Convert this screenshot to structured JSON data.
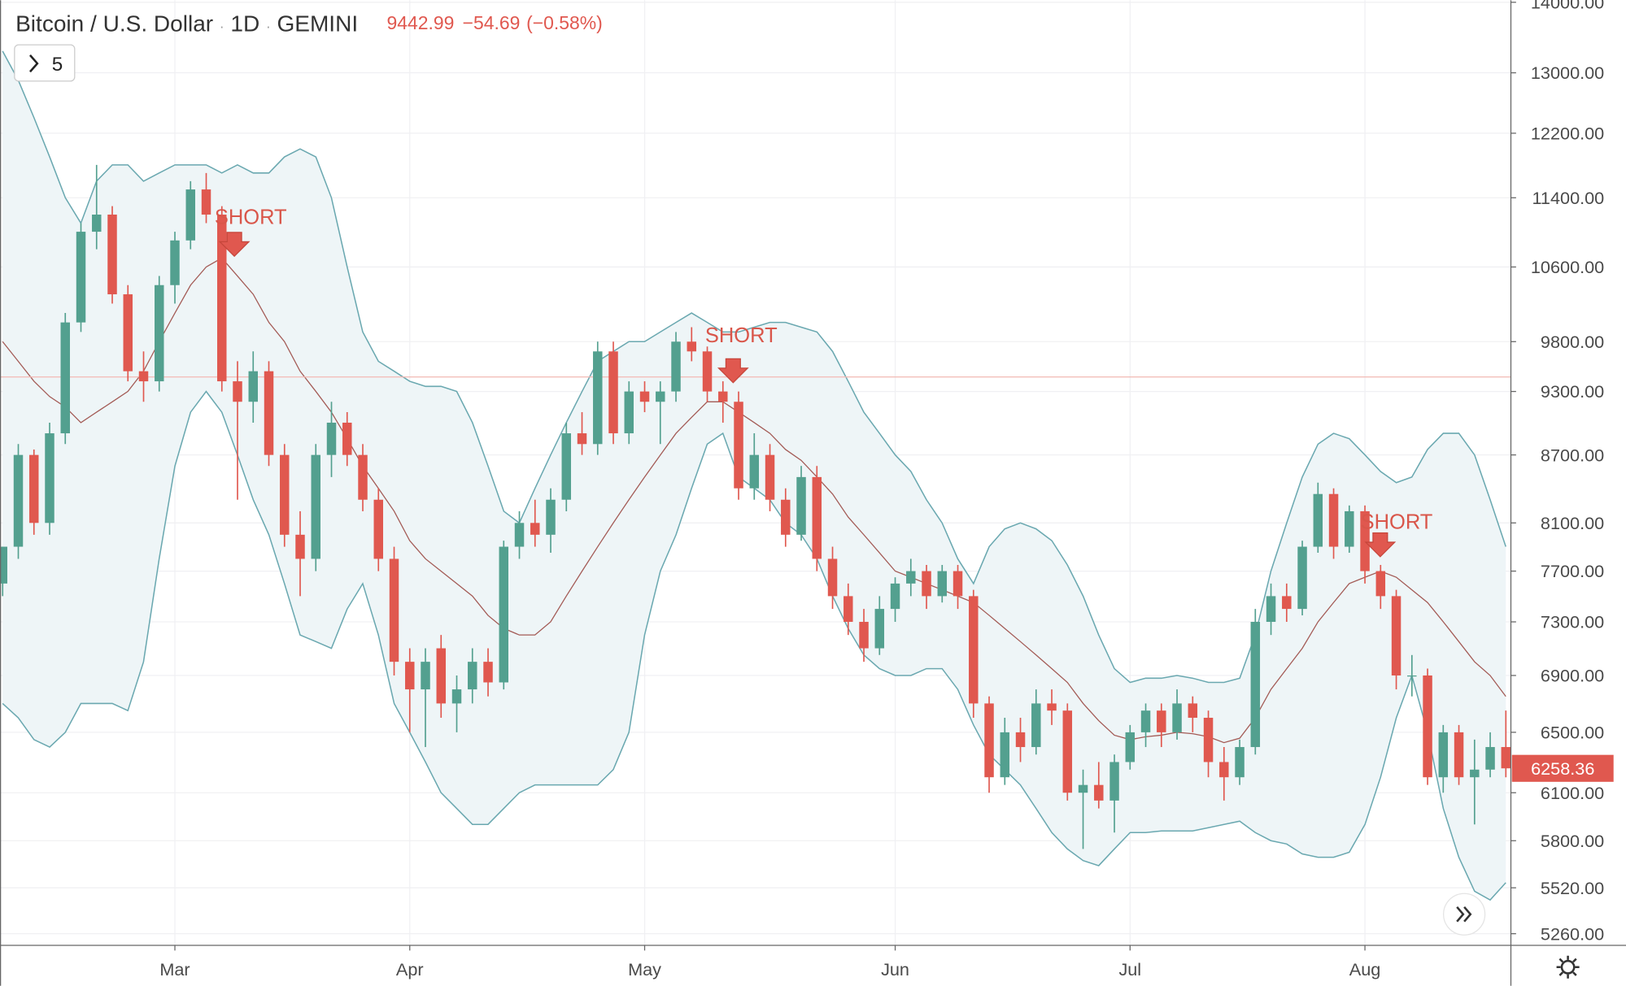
{
  "chart_data": {
    "type": "candlestick",
    "symbol": "Bitcoin / U.S. Dollar",
    "separator": "·",
    "interval": "1D",
    "exchange": "GEMINI",
    "last_price": 9442.99,
    "change": "−54.69",
    "change_pct": "(−0.58%)",
    "indicators": "5",
    "price_tag": 6258.36,
    "up_color": "#53a08f",
    "down_color": "#e0584f",
    "log_scale": true,
    "grid": true,
    "ylim": [
      5196,
      14030
    ],
    "yticks": [
      {
        "value": 14000,
        "label": "14000.00"
      },
      {
        "value": 13000,
        "label": "13000.00"
      },
      {
        "value": 12200,
        "label": "12200.00"
      },
      {
        "value": 11400,
        "label": "11400.00"
      },
      {
        "value": 10600,
        "label": "10600.00"
      },
      {
        "value": 9800,
        "label": "9800.00"
      },
      {
        "value": 9300,
        "label": "9300.00"
      },
      {
        "value": 8700,
        "label": "8700.00"
      },
      {
        "value": 8100,
        "label": "8100.00"
      },
      {
        "value": 7700,
        "label": "7700.00"
      },
      {
        "value": 7300,
        "label": "7300.00"
      },
      {
        "value": 6900,
        "label": "6900.00"
      },
      {
        "value": 6500,
        "label": "6500.00"
      },
      {
        "value": 6100,
        "label": "6100.00"
      },
      {
        "value": 5800,
        "label": "5800.00"
      },
      {
        "value": 5520,
        "label": "5520.00"
      },
      {
        "value": 5260,
        "label": "5260.00"
      }
    ],
    "categories": [
      null,
      null,
      null,
      null,
      null,
      null,
      null,
      null,
      null,
      null,
      null,
      "Mar",
      null,
      null,
      null,
      null,
      null,
      null,
      null,
      null,
      null,
      null,
      null,
      null,
      null,
      null,
      "Apr",
      null,
      null,
      null,
      null,
      null,
      null,
      null,
      null,
      null,
      null,
      null,
      null,
      null,
      null,
      "May",
      null,
      null,
      null,
      null,
      null,
      null,
      null,
      null,
      null,
      null,
      null,
      null,
      null,
      null,
      null,
      "Jun",
      null,
      null,
      null,
      null,
      null,
      null,
      null,
      null,
      null,
      null,
      null,
      null,
      null,
      null,
      "Jul",
      null,
      null,
      null,
      null,
      null,
      null,
      null,
      null,
      null,
      null,
      null,
      null,
      null,
      null,
      "Aug",
      null,
      null,
      null,
      null,
      null,
      null,
      null,
      null,
      null
    ],
    "open": [
      7600,
      7900,
      8700,
      8100,
      8900,
      10000,
      11000,
      11200,
      10300,
      9500,
      9400,
      10400,
      10900,
      11500,
      11200,
      9400,
      9200,
      9500,
      8700,
      8000,
      7800,
      8700,
      9000,
      8700,
      8300,
      7800,
      7000,
      6800,
      7100,
      6700,
      6800,
      7000,
      6850,
      7900,
      8100,
      8000,
      8300,
      8900,
      8800,
      9700,
      8900,
      9300,
      9200,
      9300,
      9800,
      9700,
      9300,
      9200,
      8400,
      8700,
      8300,
      8000,
      8500,
      7800,
      7500,
      7300,
      7100,
      7400,
      7600,
      7700,
      7500,
      7700,
      7500,
      6700,
      6200,
      6500,
      6400,
      6700,
      6650,
      6100,
      6150,
      6050,
      6300,
      6500,
      6650,
      6500,
      6700,
      6600,
      6300,
      6200,
      6400,
      7300,
      7500,
      7400,
      7900,
      8350,
      7900,
      8200,
      7700,
      7500,
      6900,
      6900,
      6200,
      6500,
      6200,
      6250,
      6400
    ],
    "high": [
      7900,
      8800,
      8750,
      9000,
      10100,
      11100,
      11800,
      11300,
      10400,
      9700,
      10500,
      11000,
      11600,
      11700,
      11300,
      9600,
      9700,
      9600,
      8800,
      8200,
      8800,
      9200,
      9100,
      8800,
      8400,
      7900,
      7100,
      7100,
      7200,
      6900,
      7100,
      7100,
      7950,
      8200,
      8300,
      8400,
      9000,
      9100,
      9800,
      9800,
      9400,
      9400,
      9400,
      9900,
      9950,
      9750,
      9400,
      9300,
      8900,
      8800,
      8400,
      8600,
      8600,
      7900,
      7600,
      7400,
      7500,
      7650,
      7800,
      7750,
      7750,
      7750,
      7550,
      6750,
      6600,
      6600,
      6800,
      6800,
      6700,
      6250,
      6300,
      6350,
      6550,
      6700,
      6700,
      6800,
      6750,
      6650,
      6400,
      6450,
      7400,
      7600,
      7600,
      7950,
      8450,
      8400,
      8250,
      8250,
      7750,
      7550,
      7050,
      6950,
      6550,
      6550,
      6450,
      6500,
      6650
    ],
    "low": [
      7500,
      7800,
      8000,
      8000,
      8800,
      9900,
      10800,
      10200,
      9400,
      9200,
      9300,
      10200,
      10800,
      11100,
      9300,
      8300,
      9000,
      8600,
      7900,
      7500,
      7700,
      8500,
      8600,
      8200,
      7700,
      6900,
      6500,
      6400,
      6600,
      6500,
      6700,
      6750,
      6800,
      7800,
      7900,
      7850,
      8200,
      8700,
      8700,
      8800,
      8800,
      9100,
      8800,
      9200,
      9600,
      9200,
      9000,
      8300,
      8300,
      8200,
      7900,
      7950,
      7700,
      7400,
      7200,
      7000,
      7050,
      7300,
      7500,
      7400,
      7450,
      7400,
      6600,
      6100,
      6150,
      6300,
      6350,
      6550,
      6050,
      5750,
      6000,
      5850,
      6250,
      6400,
      6400,
      6450,
      6500,
      6200,
      6050,
      6150,
      6350,
      7200,
      7300,
      7350,
      7850,
      7800,
      7850,
      7600,
      7400,
      6800,
      6750,
      6150,
      6100,
      6150,
      5900,
      6200,
      6200
    ],
    "close": [
      7900,
      8700,
      8100,
      8900,
      10000,
      11000,
      11200,
      10300,
      9500,
      9400,
      10400,
      10900,
      11500,
      11200,
      9400,
      9200,
      9500,
      8700,
      8000,
      7800,
      8700,
      9000,
      8700,
      8300,
      7800,
      7000,
      6800,
      7000,
      6700,
      6800,
      7000,
      6850,
      7900,
      8100,
      8000,
      8300,
      8900,
      8800,
      9700,
      8900,
      9300,
      9200,
      9300,
      9800,
      9700,
      9300,
      9200,
      8400,
      8700,
      8300,
      8000,
      8500,
      7800,
      7500,
      7300,
      7100,
      7400,
      7600,
      7700,
      7500,
      7700,
      7500,
      6700,
      6200,
      6500,
      6400,
      6700,
      6650,
      6100,
      6150,
      6050,
      6300,
      6500,
      6650,
      6500,
      6700,
      6600,
      6300,
      6200,
      6400,
      7300,
      7500,
      7400,
      7900,
      8350,
      7900,
      8200,
      7700,
      7500,
      6900,
      6900,
      6200,
      6500,
      6200,
      6250,
      6400,
      6258.36
    ],
    "bollinger": {
      "color": "#6aa8b0",
      "middle_color": "#a35a55",
      "fill": "#eef5f7",
      "upper": [
        13300,
        12900,
        12400,
        11900,
        11400,
        11100,
        11600,
        11800,
        11800,
        11600,
        11700,
        11800,
        11800,
        11800,
        11700,
        11800,
        11700,
        11700,
        11900,
        12000,
        11900,
        11400,
        10600,
        9900,
        9600,
        9500,
        9400,
        9350,
        9350,
        9300,
        9000,
        8600,
        8200,
        8100,
        8400,
        8700,
        9000,
        9300,
        9600,
        9700,
        9800,
        9800,
        9900,
        10000,
        10100,
        10000,
        9900,
        9900,
        9950,
        10000,
        10000,
        9950,
        9900,
        9700,
        9400,
        9100,
        8900,
        8700,
        8550,
        8300,
        8100,
        7800,
        7600,
        7900,
        8050,
        8100,
        8050,
        7950,
        7750,
        7500,
        7200,
        6950,
        6850,
        6880,
        6880,
        6900,
        6880,
        6850,
        6850,
        6880,
        7200,
        7700,
        8100,
        8500,
        8800,
        8900,
        8850,
        8700,
        8550,
        8450,
        8500,
        8750,
        8900,
        8900,
        8700,
        8300,
        7900
      ],
      "middle": [
        9800,
        9600,
        9400,
        9250,
        9150,
        9000,
        9100,
        9200,
        9300,
        9500,
        9800,
        10100,
        10400,
        10600,
        10700,
        10500,
        10300,
        10000,
        9800,
        9500,
        9300,
        9100,
        8850,
        8600,
        8400,
        8200,
        7950,
        7800,
        7700,
        7600,
        7500,
        7350,
        7250,
        7200,
        7200,
        7300,
        7500,
        7700,
        7900,
        8100,
        8300,
        8500,
        8700,
        8900,
        9050,
        9200,
        9200,
        9100,
        9000,
        8900,
        8750,
        8650,
        8500,
        8350,
        8150,
        8000,
        7850,
        7700,
        7650,
        7600,
        7550,
        7500,
        7450,
        7350,
        7250,
        7150,
        7050,
        6950,
        6850,
        6700,
        6580,
        6480,
        6450,
        6470,
        6480,
        6500,
        6490,
        6470,
        6430,
        6460,
        6600,
        6800,
        6950,
        7100,
        7300,
        7450,
        7600,
        7650,
        7700,
        7650,
        7550,
        7450,
        7300,
        7150,
        7000,
        6900,
        6750
      ],
      "lower": [
        6700,
        6600,
        6450,
        6400,
        6500,
        6700,
        6700,
        6700,
        6650,
        7000,
        7800,
        8600,
        9100,
        9300,
        9100,
        8700,
        8300,
        8000,
        7600,
        7200,
        7150,
        7100,
        7400,
        7600,
        7200,
        6700,
        6500,
        6300,
        6100,
        6000,
        5900,
        5900,
        6000,
        6100,
        6150,
        6150,
        6150,
        6150,
        6150,
        6250,
        6500,
        7200,
        7700,
        8000,
        8400,
        8800,
        8900,
        8500,
        8400,
        8300,
        8100,
        8000,
        7800,
        7500,
        7250,
        7050,
        6950,
        6900,
        6900,
        6950,
        6950,
        6800,
        6550,
        6350,
        6250,
        6150,
        6000,
        5850,
        5750,
        5680,
        5650,
        5750,
        5850,
        5850,
        5860,
        5860,
        5860,
        5880,
        5900,
        5920,
        5850,
        5800,
        5780,
        5720,
        5700,
        5700,
        5730,
        5900,
        6200,
        6600,
        6900,
        6500,
        6000,
        5700,
        5500,
        5450,
        5550
      ]
    },
    "annotations": [
      "SHORT",
      "SHORT",
      "SHORT"
    ]
  }
}
